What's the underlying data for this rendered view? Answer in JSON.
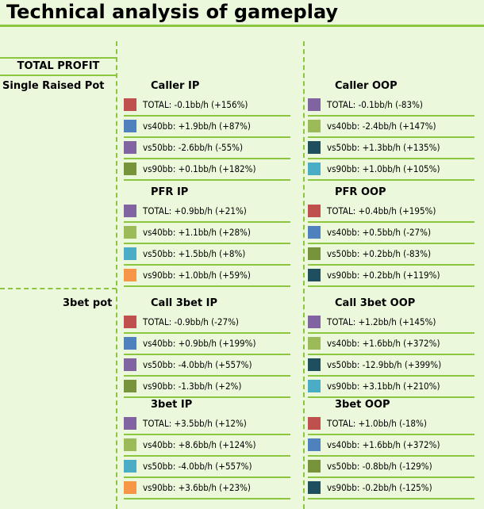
{
  "title": "Technical analysis of gameplay",
  "header_label": "TOTAL PROFIT",
  "colors": {
    "background": "#ecf8dc",
    "accent": "#8cc63f",
    "red": "#c0504d",
    "blue": "#4f81bd",
    "purple": "#8064a2",
    "olive": "#77933c",
    "lightgreen": "#9bbb59",
    "teal": "#4bacc6",
    "darkteal": "#1f4e5f",
    "orange": "#f79646"
  },
  "rows": [
    {
      "label": "Single Raised Pot",
      "sections": [
        {
          "title": "Caller IP",
          "entries": [
            {
              "color": "red",
              "text": "TOTAL: -0.1bb/h (+156%)"
            },
            {
              "color": "blue",
              "text": "vs40bb: +1.9bb/h (+87%)"
            },
            {
              "color": "purple",
              "text": "vs50bb: -2.6bb/h (-55%)"
            },
            {
              "color": "olive",
              "text": "vs90bb: +0.1bb/h (+182%)"
            }
          ]
        },
        {
          "title": "Caller OOP",
          "entries": [
            {
              "color": "purple",
              "text": "TOTAL: -0.1bb/h (-83%)"
            },
            {
              "color": "lightgreen",
              "text": "vs40bb: -2.4bb/h (+147%)"
            },
            {
              "color": "darkteal",
              "text": "vs50bb: +1.3bb/h (+135%)"
            },
            {
              "color": "teal",
              "text": "vs90bb: +1.0bb/h (+105%)"
            }
          ]
        },
        {
          "title": "PFR IP",
          "entries": [
            {
              "color": "purple",
              "text": "TOTAL: +0.9bb/h (+21%)"
            },
            {
              "color": "lightgreen",
              "text": "vs40bb: +1.1bb/h (+28%)"
            },
            {
              "color": "teal",
              "text": "vs50bb: +1.5bb/h (+8%)"
            },
            {
              "color": "orange",
              "text": "vs90bb: +1.0bb/h (+59%)"
            }
          ]
        },
        {
          "title": "PFR OOP",
          "entries": [
            {
              "color": "red",
              "text": "TOTAL: +0.4bb/h (+195%)"
            },
            {
              "color": "blue",
              "text": "vs40bb: +0.5bb/h (-27%)"
            },
            {
              "color": "olive",
              "text": "vs50bb: +0.2bb/h (-83%)"
            },
            {
              "color": "darkteal",
              "text": "vs90bb: +0.2bb/h (+119%)"
            }
          ]
        }
      ]
    },
    {
      "label": "3bet pot",
      "sections": [
        {
          "title": "Call 3bet IP",
          "entries": [
            {
              "color": "red",
              "text": "TOTAL: -0.9bb/h (-27%)"
            },
            {
              "color": "blue",
              "text": "vs40bb: +0.9bb/h (+199%)"
            },
            {
              "color": "purple",
              "text": "vs50bb: -4.0bb/h (+557%)"
            },
            {
              "color": "olive",
              "text": "vs90bb: -1.3bb/h (+2%)"
            }
          ]
        },
        {
          "title": "Call 3bet OOP",
          "entries": [
            {
              "color": "purple",
              "text": "TOTAL: +1.2bb/h (+145%)"
            },
            {
              "color": "lightgreen",
              "text": "vs40bb: +1.6bb/h (+372%)"
            },
            {
              "color": "darkteal",
              "text": "vs50bb: -12.9bb/h (+399%)"
            },
            {
              "color": "teal",
              "text": "vs90bb: +3.1bb/h (+210%)"
            }
          ]
        },
        {
          "title": "3bet IP",
          "entries": [
            {
              "color": "purple",
              "text": "TOTAL: +3.5bb/h (+12%)"
            },
            {
              "color": "lightgreen",
              "text": "vs40bb: +8.6bb/h (+124%)"
            },
            {
              "color": "teal",
              "text": "vs50bb: -4.0bb/h (+557%)"
            },
            {
              "color": "orange",
              "text": "vs90bb: +3.6bb/h (+23%)"
            }
          ]
        },
        {
          "title": "3bet OOP",
          "entries": [
            {
              "color": "red",
              "text": "TOTAL: +1.0bb/h (-18%)"
            },
            {
              "color": "blue",
              "text": "vs40bb: +1.6bb/h (+372%)"
            },
            {
              "color": "olive",
              "text": "vs50bb: -0.8bb/h (-129%)"
            },
            {
              "color": "darkteal",
              "text": "vs90bb: -0.2bb/h (-125%)"
            }
          ]
        }
      ]
    }
  ]
}
